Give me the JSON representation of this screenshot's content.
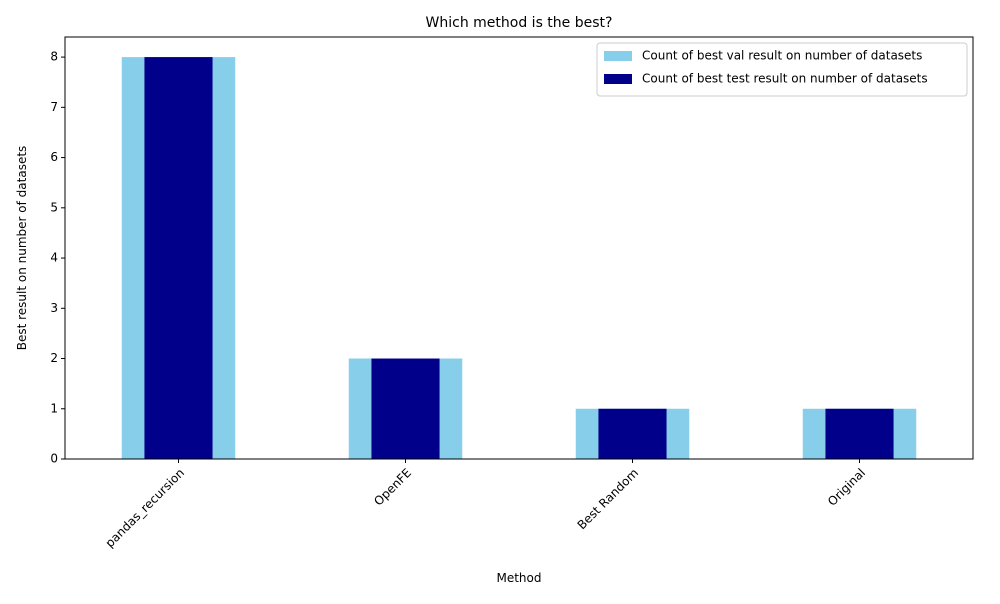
{
  "chart_data": {
    "type": "bar",
    "title": "Which method is the best?",
    "xlabel": "Method",
    "ylabel": "Best result on number of datasets",
    "categories": [
      "pandas_recursion",
      "OpenFE",
      "Best Random",
      "Original"
    ],
    "series": [
      {
        "name": "Count of best val result on number of datasets",
        "values": [
          8,
          2,
          1,
          1
        ],
        "color": "#87ceeb"
      },
      {
        "name": "Count of best test result on number of datasets",
        "values": [
          8,
          2,
          1,
          1
        ],
        "color": "#00008b"
      }
    ],
    "ylim": [
      0,
      8.4
    ],
    "yticks": [
      0,
      1,
      2,
      3,
      4,
      5,
      6,
      7,
      8
    ],
    "grid": false,
    "legend_position": "top-right",
    "xtick_rotation_deg": 45
  }
}
